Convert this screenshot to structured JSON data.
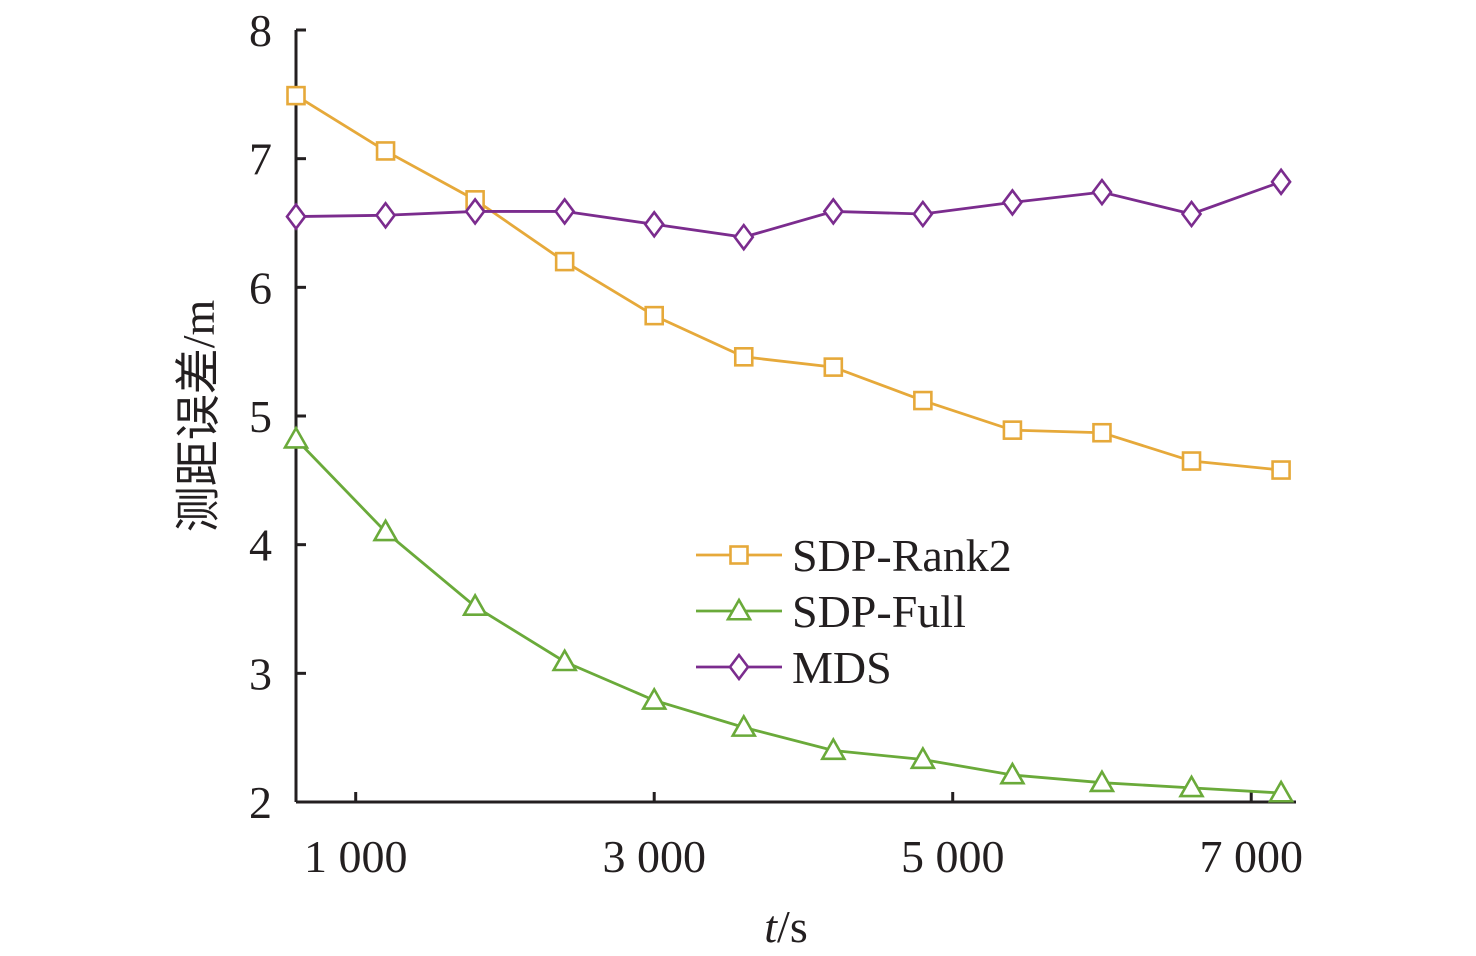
{
  "chart_data": {
    "type": "line",
    "xlabel_italic": "t",
    "xlabel_unit": "/s",
    "ylabel": "测距误差/m",
    "xlim": [
      600,
      7300
    ],
    "ylim": [
      2,
      8
    ],
    "x_ticks": [
      1000,
      3000,
      5000,
      7000
    ],
    "x_tick_labels": [
      "1 000",
      "3 000",
      "5 000",
      "7 000"
    ],
    "y_ticks": [
      2,
      3,
      4,
      5,
      6,
      7,
      8
    ],
    "y_tick_labels": [
      "2",
      "3",
      "4",
      "5",
      "6",
      "7",
      "8"
    ],
    "x": [
      600,
      1200,
      1800,
      2400,
      3000,
      3600,
      4200,
      4800,
      5400,
      6000,
      6600,
      7200
    ],
    "legend_position": "center",
    "series": [
      {
        "name": "SDP-Rank2",
        "color": "#e6a93a",
        "marker": "square",
        "values": [
          7.49,
          7.06,
          6.68,
          6.2,
          5.78,
          5.46,
          5.38,
          5.12,
          4.89,
          4.87,
          4.65,
          4.58
        ]
      },
      {
        "name": "SDP-Full",
        "color": "#6aaa3a",
        "marker": "triangle",
        "values": [
          4.82,
          4.1,
          3.52,
          3.09,
          2.79,
          2.58,
          2.4,
          2.33,
          2.21,
          2.15,
          2.11,
          2.07
        ]
      },
      {
        "name": "MDS",
        "color": "#7b2c8e",
        "marker": "diamond",
        "values": [
          6.55,
          6.56,
          6.59,
          6.59,
          6.49,
          6.39,
          6.59,
          6.57,
          6.66,
          6.74,
          6.57,
          6.82
        ]
      }
    ]
  }
}
